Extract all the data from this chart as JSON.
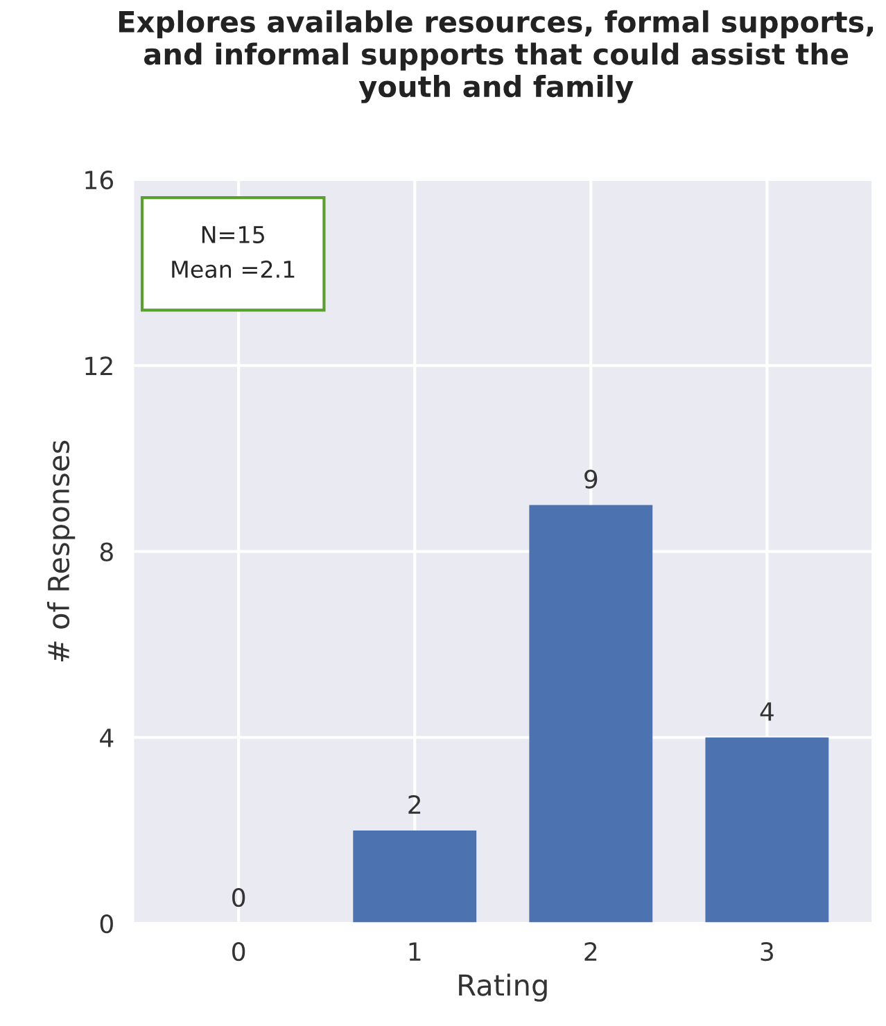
{
  "chart_data": {
    "type": "bar",
    "title": "Explores available resources, formal supports, and informal supports that could assist the youth and family",
    "xlabel": "Rating",
    "ylabel": "# of Responses",
    "categories": [
      "0",
      "1",
      "2",
      "3"
    ],
    "values": [
      0,
      2,
      9,
      4
    ],
    "color": "#4c72b0",
    "ylim": [
      0,
      16
    ],
    "yticks": [
      0,
      4,
      8,
      12,
      16
    ],
    "grid": true,
    "data_labels": true,
    "annotations": [
      "N=15\nMean =2.1"
    ]
  }
}
